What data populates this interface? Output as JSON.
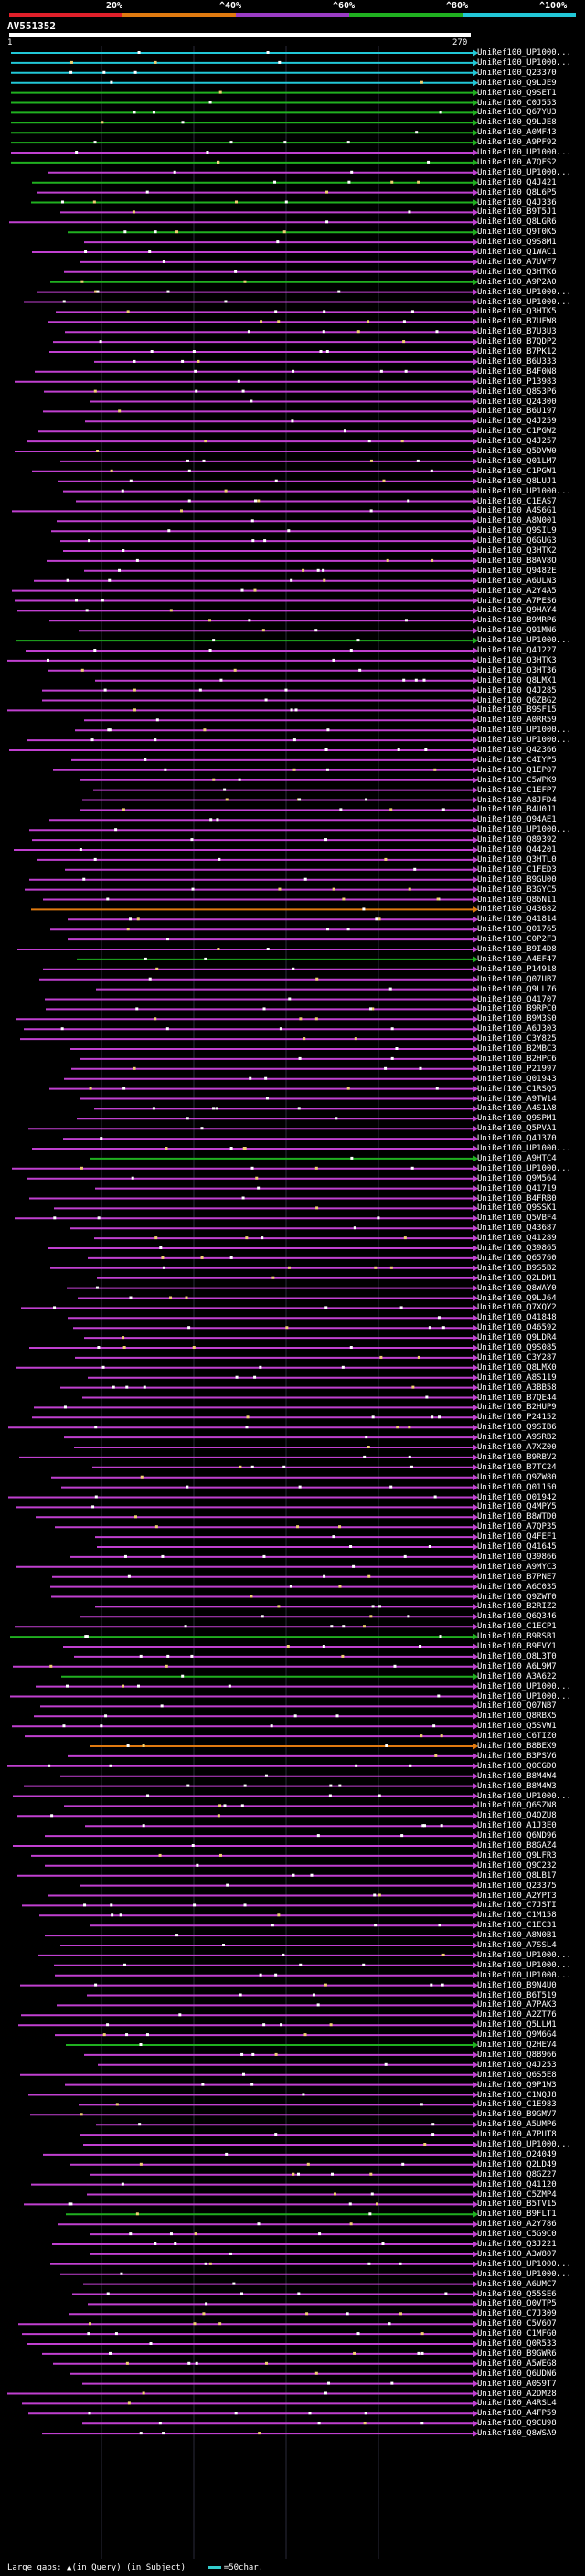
{
  "chart_data": {
    "type": "alignment-overview",
    "query_id": "AV551352",
    "query_start": 1,
    "query_end": 270,
    "identity_legend": [
      {
        "label": "20%",
        "color": "#e0202a"
      },
      {
        "label": "^40%",
        "color": "#e07a10"
      },
      {
        "label": "^60%",
        "color": "#9a3cc4"
      },
      {
        "label": "^80%",
        "color": "#20b020"
      },
      {
        "label": "^100%",
        "color": "#22c8d8"
      }
    ],
    "hit_prefix": "UniRef100_",
    "hits": [
      "UP1000...",
      "UP1000...",
      "Q23370",
      "Q9LJE9",
      "Q9SET1",
      "C0J553",
      "Q67YU3",
      "Q9LJE8",
      "A0MF43",
      "A9PF92",
      "UP1000...",
      "A7QFS2",
      "UP1000...",
      "Q4J421",
      "Q8L6P5",
      "Q4J336",
      "B9T5J1",
      "Q8LGR6",
      "Q9T0K5",
      "Q9S8M1",
      "Q1WAC1",
      "A7UVF7",
      "Q3HTK6",
      "A9P2A0",
      "UP1000...",
      "UP1000...",
      "Q3HTK5",
      "B7UFW8",
      "B7U3U3",
      "B7QDP2",
      "B7PK12",
      "B6U333",
      "B4F0N8",
      "P13983",
      "Q8S3P6",
      "Q24300",
      "B6U197",
      "Q4J259",
      "C1PGW2",
      "Q4J257",
      "Q5DVW0",
      "Q01LM7",
      "C1PGW1",
      "Q8LUJ1",
      "UP1000...",
      "C1EAS7",
      "A4S6G1",
      "A8N001",
      "Q9SIL9",
      "Q6GUG3",
      "Q3HTK2",
      "B8AV8O",
      "Q9482E",
      "A6ULN3",
      "A2Y4A5",
      "A7PES6",
      "Q9HAY4",
      "B9MRP6",
      "Q91MN6",
      "UP1000...",
      "Q4J227",
      "Q3HTK3",
      "Q3HT36",
      "Q8LMX1",
      "Q4J285",
      "Q6ZBG2",
      "B9SF15",
      "A0RR59",
      "UP1000...",
      "UP1000...",
      "Q42366",
      "C4IYP5",
      "Q1EP07",
      "C5WPK9",
      "C1EFP7",
      "A8JFD4",
      "B4U0J1",
      "Q94AE1",
      "UP1000...",
      "Q89392",
      "Q44201",
      "Q3HTL0",
      "C1FED3",
      "B9GU00",
      "B3GYC5",
      "Q86N11",
      "Q43682",
      "Q41814",
      "Q01765",
      "C0P2F3",
      "B9I4D8",
      "A4EF47",
      "P14918",
      "Q07UB7",
      "Q9LL76",
      "Q41707",
      "B9RPC0",
      "B9M3S0",
      "A6J303",
      "C3Y825",
      "B2MBC3",
      "B2HPC6",
      "P21997",
      "Q01943",
      "C1RSQ5",
      "A9TW14",
      "A4S1A8",
      "Q9SPM1",
      "Q5PVA1",
      "Q4J370",
      "UP1000...",
      "A9HTC4",
      "UP1000...",
      "Q9M564",
      "Q41719",
      "B4FRB0",
      "Q9SSK1",
      "Q5VBF4",
      "Q43687",
      "Q41289",
      "Q39865",
      "Q65760",
      "B9S5B2",
      "Q2LDM1",
      "Q8WAY0",
      "Q9LJ64",
      "Q7XQY2",
      "Q41848",
      "Q46592",
      "Q9LDR4",
      "Q9S085",
      "C3Y287",
      "Q8LMX0",
      "A8S119",
      "A3BB58",
      "B7QE44",
      "B2HUP9",
      "P24152",
      "Q9SIB6",
      "A9SRB2",
      "A7XZ00",
      "B9RBV2",
      "B7TC24",
      "Q9ZW80",
      "Q01150",
      "Q01942",
      "Q4MPY5",
      "B8WTD0",
      "A7QP35",
      "Q4FEF1",
      "Q41645",
      "Q39866",
      "A9MYC3",
      "B7PNE7",
      "A6C035",
      "Q9ZWT0",
      "B2RIZ2",
      "Q6Q346",
      "C1ECP1",
      "B9RSB1",
      "B9EVY1",
      "Q8L3T0",
      "A6L9M7",
      "A3A622",
      "UP1000...",
      "UP1000...",
      "Q07NB7",
      "Q8RBX5",
      "Q5SVW1",
      "C6TIZ0",
      "B8BEX9",
      "B3PSV6",
      "Q0CGD0",
      "B8M4W4",
      "B8M4W3",
      "UP1000...",
      "Q6SZN8",
      "Q4QZU8",
      "A1J3E0",
      "Q6ND96",
      "B8GAZ4",
      "Q9LFR3",
      "Q9C232",
      "Q8LB17",
      "Q23375",
      "A2YPT3",
      "C7JSTI",
      "C1M158",
      "C1EC31",
      "A8N0B1",
      "A7SSL4",
      "UP1000...",
      "UP1000...",
      "UP1000...",
      "B9N4U0",
      "B6T519",
      "A7PAK3",
      "A2ZT76",
      "Q5LLM1",
      "Q9M6G4",
      "Q2HEV4",
      "Q8B966",
      "Q4J253",
      "Q6S5E8",
      "Q9P1W3",
      "C1NQJ8",
      "C1E983",
      "B9GMV7",
      "A5UMP6",
      "A7PUT8",
      "UP1000...",
      "Q24049",
      "Q2LD49",
      "Q8GZ27",
      "Q41120",
      "C5ZMP4",
      "B5TV15",
      "B9FLT1",
      "A2Y786",
      "C5G9C0",
      "Q3J221",
      "A3W807",
      "UP1000...",
      "UP1000...",
      "A6UMC7",
      "Q55SE6",
      "Q0VTP5",
      "C7J309",
      "C5V6O7",
      "C1MFG0",
      "Q0R533",
      "B9GWR6",
      "A5WEG8",
      "Q6UDN6",
      "A0S9T7",
      "A2DM28",
      "A4RSL4",
      "A4FP59",
      "Q9CU98",
      "Q8WSA9"
    ]
  },
  "footer": {
    "large_gaps_label": "Large gaps:",
    "query_gap_text": "(in Query)",
    "subject_gap_text": "(in Subject)",
    "scale_text": "=50char."
  }
}
